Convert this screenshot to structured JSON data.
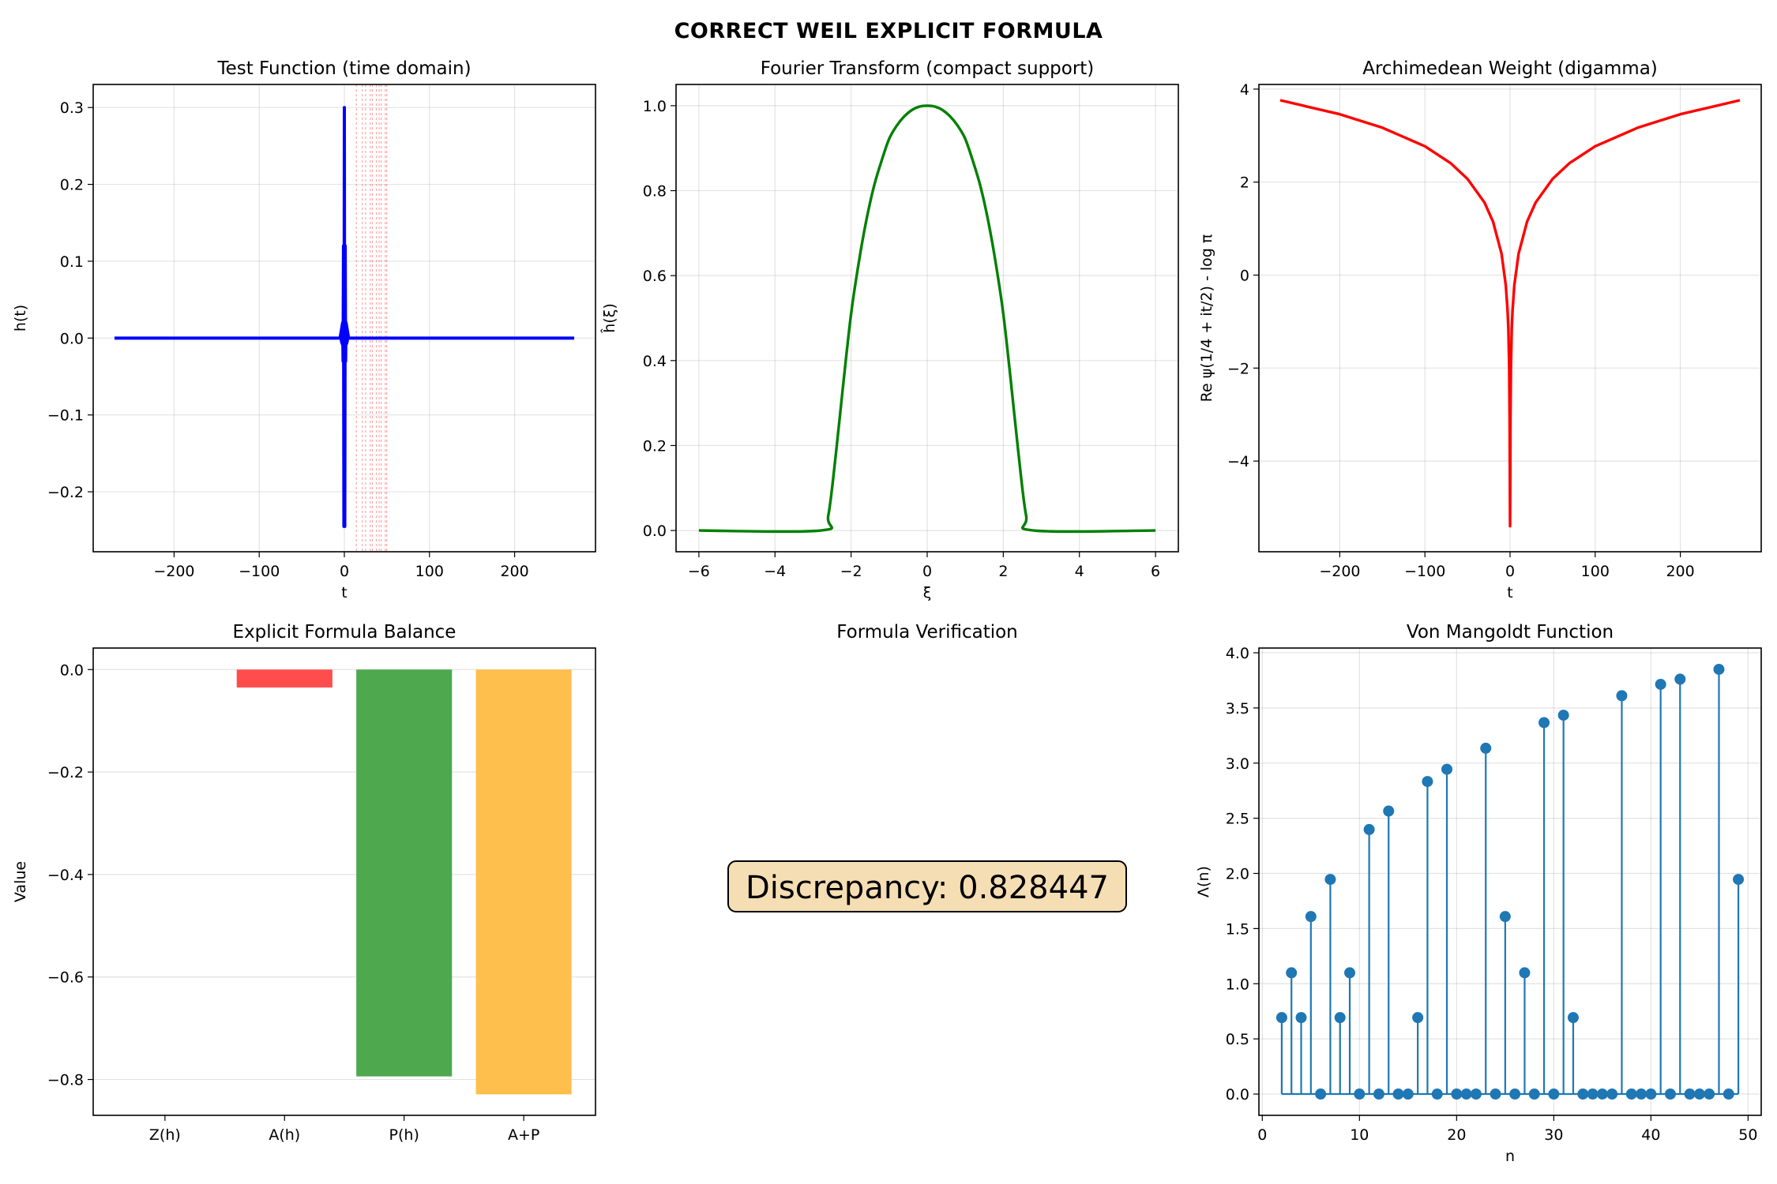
{
  "figure": {
    "title": "CORRECT WEIL EXPLICIT FORMULA"
  },
  "colors": {
    "blue": "#0000ff",
    "green": "#008000",
    "red": "#ff0000",
    "stem": "#1f77b4",
    "bar_red": "#ff4d4d",
    "bar_green": "#4ea84e",
    "bar_orange": "#ffbf4d",
    "box_fill": "#f5deb3"
  },
  "chart_data": [
    {
      "id": "test-function",
      "type": "line",
      "title": "Test Function (time domain)",
      "xlabel": "t",
      "ylabel": "h(t)",
      "xlim": [
        -295,
        295
      ],
      "ylim": [
        -0.278,
        0.33
      ],
      "xticks": [
        -200,
        -100,
        0,
        100,
        200
      ],
      "yticks": [
        -0.2,
        -0.1,
        0.0,
        0.1,
        0.2,
        0.3
      ],
      "ytick_labels": [
        "−0.2",
        "−0.1",
        "0.0",
        "0.1",
        "0.2",
        "0.3"
      ],
      "xtick_labels": [
        "−200",
        "−100",
        "0",
        "100",
        "200"
      ],
      "grid": true,
      "series": [
        {
          "color": "blue",
          "x": [
            -270,
            -5,
            -2,
            -1.5,
            -1,
            -0.5,
            0,
            0.5,
            1,
            1.5,
            2,
            5,
            270
          ],
          "y": [
            0,
            0,
            0.02,
            -0.03,
            0.12,
            -0.245,
            0.3,
            -0.245,
            0.12,
            -0.03,
            0.02,
            0,
            0
          ]
        }
      ],
      "zero_markers": [
        14.13,
        21.02,
        25.01,
        30.42,
        32.94,
        37.59,
        40.92,
        43.33,
        48.01,
        49.77
      ]
    },
    {
      "id": "fourier-transform",
      "type": "line",
      "title": "Fourier Transform (compact support)",
      "xlabel": "ξ",
      "ylabel": "ĥ(ξ)",
      "xlim": [
        -6.6,
        6.6
      ],
      "ylim": [
        -0.05,
        1.05
      ],
      "xticks": [
        -6,
        -4,
        -2,
        0,
        2,
        4,
        6
      ],
      "xtick_labels": [
        "−6",
        "−4",
        "−2",
        "0",
        "2",
        "4",
        "6"
      ],
      "yticks": [
        0.0,
        0.2,
        0.4,
        0.6,
        0.8,
        1.0
      ],
      "ytick_labels": [
        "0.0",
        "0.2",
        "0.4",
        "0.6",
        "0.8",
        "1.0"
      ],
      "grid": true,
      "series": [
        {
          "color": "green",
          "x": [
            -6,
            -2.8,
            -2.6,
            -2.4,
            -2.2,
            -2.0,
            -1.8,
            -1.6,
            -1.4,
            -1.2,
            -1.0,
            -0.8,
            -0.6,
            -0.4,
            -0.2,
            0,
            0.2,
            0.4,
            0.6,
            0.8,
            1.0,
            1.2,
            1.4,
            1.6,
            1.8,
            2.0,
            2.2,
            2.4,
            2.6,
            2.8,
            6
          ],
          "y": [
            0,
            0,
            0.035,
            0.18,
            0.35,
            0.51,
            0.63,
            0.73,
            0.81,
            0.87,
            0.922,
            0.953,
            0.975,
            0.99,
            0.998,
            1.0,
            0.998,
            0.99,
            0.975,
            0.953,
            0.922,
            0.87,
            0.81,
            0.73,
            0.63,
            0.51,
            0.35,
            0.18,
            0.035,
            0,
            0
          ]
        }
      ]
    },
    {
      "id": "archimedean-weight",
      "type": "line",
      "title": "Archimedean Weight (digamma)",
      "xlabel": "t",
      "ylabel": "Re ψ(1/4 + it/2) - log π",
      "xlim": [
        -295,
        295
      ],
      "ylim": [
        -5.95,
        4.1
      ],
      "xticks": [
        -200,
        -100,
        0,
        100,
        200
      ],
      "xtick_labels": [
        "−200",
        "−100",
        "0",
        "100",
        "200"
      ],
      "yticks": [
        -4,
        -2,
        0,
        2,
        4
      ],
      "ytick_labels": [
        "−4",
        "−2",
        "0",
        "2",
        "4"
      ],
      "grid": true,
      "series": [
        {
          "color": "red",
          "x": [
            -270,
            -200,
            -150,
            -100,
            -70,
            -50,
            -30,
            -20,
            -10,
            -5,
            -3,
            -2,
            -1,
            -0.5,
            0,
            0.5,
            1,
            2,
            3,
            5,
            10,
            20,
            30,
            50,
            70,
            100,
            150,
            200,
            270
          ],
          "y": [
            3.76,
            3.46,
            3.17,
            2.77,
            2.41,
            2.07,
            1.56,
            1.15,
            0.46,
            -0.22,
            -0.74,
            -1.14,
            -2.0,
            -3.1,
            -5.4,
            -3.1,
            -2.0,
            -1.14,
            -0.74,
            -0.22,
            0.46,
            1.15,
            1.56,
            2.07,
            2.41,
            2.77,
            3.17,
            3.46,
            3.76
          ]
        }
      ]
    },
    {
      "id": "formula-balance",
      "type": "bar",
      "title": "Explicit Formula Balance",
      "xlabel": "",
      "ylabel": "Value",
      "categories": [
        "Z(h)",
        "A(h)",
        "P(h)",
        "A+P"
      ],
      "values": [
        0.0,
        -0.035,
        -0.794,
        -0.829
      ],
      "bar_colors": [
        "bar_red",
        "bar_red",
        "bar_green",
        "bar_orange"
      ],
      "ylim": [
        -0.87,
        0.042
      ],
      "yticks": [
        -0.8,
        -0.6,
        -0.4,
        -0.2,
        0.0
      ],
      "ytick_labels": [
        "−0.8",
        "−0.6",
        "−0.4",
        "−0.2",
        "0.0"
      ],
      "grid": true
    },
    {
      "id": "formula-verification",
      "type": "text",
      "title": "Formula Verification",
      "annotation": "Discrepancy: 0.828447"
    },
    {
      "id": "von-mangoldt",
      "type": "stem",
      "title": "Von Mangoldt Function",
      "xlabel": "n",
      "ylabel": "Λ(n)",
      "xlim": [
        -0.35,
        51.35
      ],
      "ylim": [
        -0.193,
        4.043
      ],
      "xticks": [
        0,
        10,
        20,
        30,
        40,
        50
      ],
      "xtick_labels": [
        "0",
        "10",
        "20",
        "30",
        "40",
        "50"
      ],
      "yticks": [
        0.0,
        0.5,
        1.0,
        1.5,
        2.0,
        2.5,
        3.0,
        3.5,
        4.0
      ],
      "ytick_labels": [
        "0.0",
        "0.5",
        "1.0",
        "1.5",
        "2.0",
        "2.5",
        "3.0",
        "3.5",
        "4.0"
      ],
      "grid": true,
      "x": [
        2,
        3,
        4,
        5,
        6,
        7,
        8,
        9,
        10,
        11,
        12,
        13,
        14,
        15,
        16,
        17,
        18,
        19,
        20,
        21,
        22,
        23,
        24,
        25,
        26,
        27,
        28,
        29,
        30,
        31,
        32,
        33,
        34,
        35,
        36,
        37,
        38,
        39,
        40,
        41,
        42,
        43,
        44,
        45,
        46,
        47,
        48,
        49
      ],
      "y": [
        0.693,
        1.099,
        0.693,
        1.609,
        0,
        1.946,
        0.693,
        1.099,
        0,
        2.398,
        0,
        2.565,
        0,
        0,
        0.693,
        2.833,
        0,
        2.944,
        0,
        0,
        0,
        3.135,
        0,
        1.609,
        0,
        1.099,
        0,
        3.367,
        0,
        3.434,
        0.693,
        0,
        0,
        0,
        0,
        3.611,
        0,
        0,
        0,
        3.714,
        0,
        3.761,
        0,
        0,
        0,
        3.85,
        0,
        1.946
      ]
    }
  ]
}
